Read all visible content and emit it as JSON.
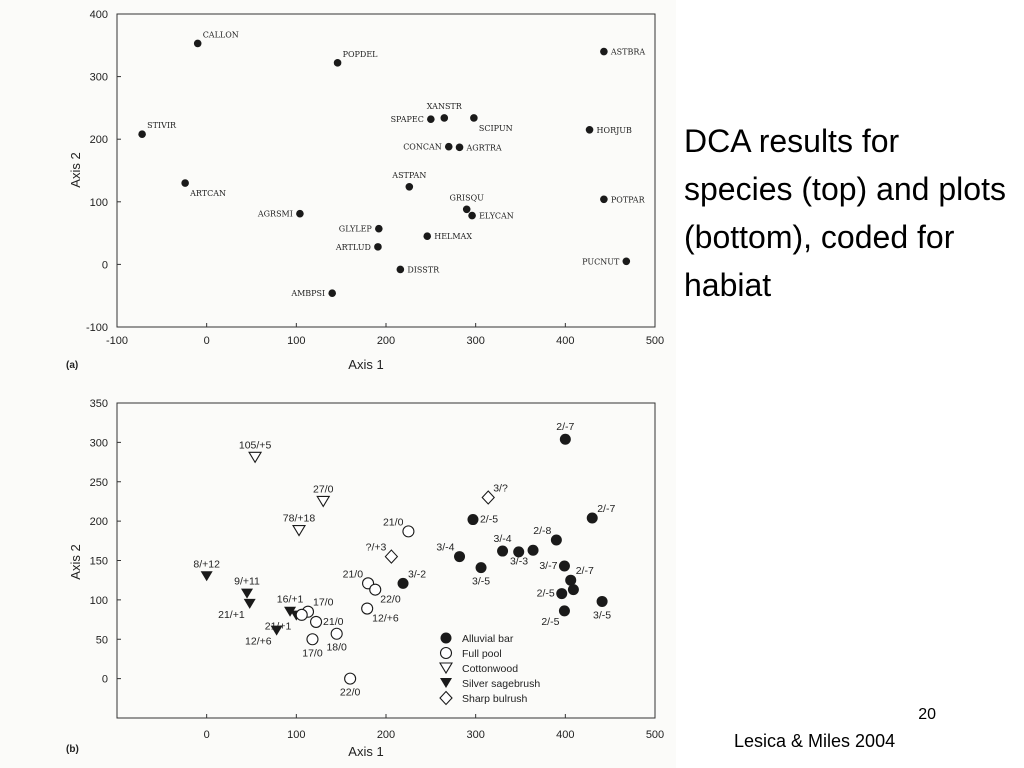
{
  "slide": {
    "caption": "DCA results for species (top) and plots (bottom), coded for habiat",
    "page_number": "20",
    "citation": "Lesica & Miles 2004"
  },
  "chart_data": [
    {
      "type": "scatter",
      "panel": "(a)",
      "xlabel": "Axis 1",
      "ylabel": "Axis 2",
      "xlim": [
        -100,
        500
      ],
      "ylim": [
        -100,
        400
      ],
      "xticks": [
        -100,
        0,
        100,
        200,
        300,
        400,
        500
      ],
      "yticks": [
        -100,
        0,
        100,
        200,
        300,
        400
      ],
      "grid": false,
      "points": [
        {
          "label": "CALLON",
          "x": -10,
          "y": 353,
          "lpos": "ur"
        },
        {
          "label": "POPDEL",
          "x": 146,
          "y": 322,
          "lpos": "ur"
        },
        {
          "label": "ASTBRA",
          "x": 443,
          "y": 340,
          "lpos": "r"
        },
        {
          "label": "STIVIR",
          "x": -72,
          "y": 208,
          "lpos": "ur"
        },
        {
          "label": "XANSTR",
          "x": 265,
          "y": 234,
          "lpos": "ua"
        },
        {
          "label": "SPAPEC",
          "x": 250,
          "y": 232,
          "lpos": "l"
        },
        {
          "label": "SCIPUN",
          "x": 298,
          "y": 234,
          "lpos": "dr"
        },
        {
          "label": "HORJUB",
          "x": 427,
          "y": 215,
          "lpos": "r"
        },
        {
          "label": "CONCAN",
          "x": 270,
          "y": 188,
          "lpos": "l"
        },
        {
          "label": "AGRTRA",
          "x": 282,
          "y": 187,
          "lpos": "r"
        },
        {
          "label": "ASTPAN",
          "x": 226,
          "y": 124,
          "lpos": "ua"
        },
        {
          "label": "ARTCAN",
          "x": -24,
          "y": 130,
          "lpos": "dr"
        },
        {
          "label": "GRISQU",
          "x": 290,
          "y": 88,
          "lpos": "ua"
        },
        {
          "label": "ELYCAN",
          "x": 296,
          "y": 78,
          "lpos": "r"
        },
        {
          "label": "POTPAR",
          "x": 443,
          "y": 104,
          "lpos": "r"
        },
        {
          "label": "AGRSMI",
          "x": 104,
          "y": 81,
          "lpos": "l"
        },
        {
          "label": "GLYLEP",
          "x": 192,
          "y": 57,
          "lpos": "l"
        },
        {
          "label": "HELMAX",
          "x": 246,
          "y": 45,
          "lpos": "r"
        },
        {
          "label": "ARTLUD",
          "x": 191,
          "y": 28,
          "lpos": "l"
        },
        {
          "label": "DISSTR",
          "x": 216,
          "y": -8,
          "lpos": "r"
        },
        {
          "label": "PUCNUT",
          "x": 468,
          "y": 5,
          "lpos": "l"
        },
        {
          "label": "AMBPSI",
          "x": 140,
          "y": -46,
          "lpos": "l"
        }
      ]
    },
    {
      "type": "scatter",
      "panel": "(b)",
      "xlabel": "Axis 1",
      "ylabel": "Axis 2",
      "xlim": [
        -100,
        500
      ],
      "ylim": [
        -50,
        350
      ],
      "xticks": [
        0,
        100,
        200,
        300,
        400,
        500
      ],
      "yticks": [
        0,
        50,
        100,
        150,
        200,
        250,
        300,
        350
      ],
      "grid": false,
      "legend_position": "bottom-right",
      "legend": [
        {
          "name": "Alluvial bar",
          "marker": "filled-circle"
        },
        {
          "name": "Full pool",
          "marker": "open-circle"
        },
        {
          "name": "Cottonwood",
          "marker": "open-triangle"
        },
        {
          "name": "Silver sagebrush",
          "marker": "filled-triangle"
        },
        {
          "name": "Sharp bulrush",
          "marker": "open-diamond"
        }
      ],
      "points": [
        {
          "label": "105/+5",
          "x": 54,
          "y": 281,
          "group": "Cottonwood",
          "lpos": "ua"
        },
        {
          "label": "27/0",
          "x": 130,
          "y": 225,
          "group": "Cottonwood",
          "lpos": "ua"
        },
        {
          "label": "78/+18",
          "x": 103,
          "y": 188,
          "group": "Cottonwood",
          "lpos": "ua"
        },
        {
          "label": "8/+12",
          "x": 0,
          "y": 130,
          "group": "Silver sagebrush",
          "lpos": "ua"
        },
        {
          "label": "9/+11",
          "x": 45,
          "y": 108,
          "group": "Silver sagebrush",
          "lpos": "ua"
        },
        {
          "label": "21/+1",
          "x": 48,
          "y": 95,
          "group": "Silver sagebrush",
          "lpos": "dl"
        },
        {
          "label": "16/+1",
          "x": 93,
          "y": 85,
          "group": "Silver sagebrush",
          "lpos": "ua"
        },
        {
          "label": "21/+1",
          "x": 100,
          "y": 80,
          "group": "Silver sagebrush",
          "lpos": "dl"
        },
        {
          "label": "12/+6",
          "x": 78,
          "y": 61,
          "group": "Silver sagebrush",
          "lpos": "dl"
        },
        {
          "label": "17/0",
          "x": 113,
          "y": 85,
          "group": "Full pool",
          "lpos": "ur"
        },
        {
          "label": "",
          "x": 106,
          "y": 81,
          "group": "Full pool",
          "lpos": "r"
        },
        {
          "label": "21/0",
          "x": 122,
          "y": 72,
          "group": "Full pool",
          "lpos": "r"
        },
        {
          "label": "17/0",
          "x": 118,
          "y": 50,
          "group": "Full pool",
          "lpos": "d"
        },
        {
          "label": "18/0",
          "x": 145,
          "y": 57,
          "group": "Full pool",
          "lpos": "d"
        },
        {
          "label": "22/0",
          "x": 160,
          "y": 0,
          "group": "Full pool",
          "lpos": "d"
        },
        {
          "label": "21/0",
          "x": 225,
          "y": 187,
          "group": "Full pool",
          "lpos": "ul"
        },
        {
          "label": "21/0",
          "x": 180,
          "y": 121,
          "group": "Full pool",
          "lpos": "ul"
        },
        {
          "label": "22/0",
          "x": 188,
          "y": 113,
          "group": "Full pool",
          "lpos": "dr"
        },
        {
          "label": "12/+6",
          "x": 179,
          "y": 89,
          "group": "Full pool",
          "lpos": "dr"
        },
        {
          "label": "?/+3",
          "x": 206,
          "y": 155,
          "group": "Sharp bulrush",
          "lpos": "ul"
        },
        {
          "label": "3/?",
          "x": 314,
          "y": 230,
          "group": "Sharp bulrush",
          "lpos": "ur"
        },
        {
          "label": "3/-2",
          "x": 219,
          "y": 121,
          "group": "Alluvial bar",
          "lpos": "ur"
        },
        {
          "label": "3/-4",
          "x": 282,
          "y": 155,
          "group": "Alluvial bar",
          "lpos": "ul"
        },
        {
          "label": "2/-5",
          "x": 297,
          "y": 202,
          "group": "Alluvial bar",
          "lpos": "r"
        },
        {
          "label": "3/-4",
          "x": 330,
          "y": 162,
          "group": "Alluvial bar",
          "lpos": "ua"
        },
        {
          "label": "3/-5",
          "x": 306,
          "y": 141,
          "group": "Alluvial bar",
          "lpos": "d"
        },
        {
          "label": "",
          "x": 348,
          "y": 161,
          "group": "Alluvial bar",
          "lpos": "r"
        },
        {
          "label": "3/-3",
          "x": 364,
          "y": 163,
          "group": "Alluvial bar",
          "lpos": "dl"
        },
        {
          "label": "2/-8",
          "x": 390,
          "y": 176,
          "group": "Alluvial bar",
          "lpos": "ul"
        },
        {
          "label": "3/-7",
          "x": 399,
          "y": 143,
          "group": "Alluvial bar",
          "lpos": "l"
        },
        {
          "label": "2/-7",
          "x": 400,
          "y": 304,
          "group": "Alluvial bar",
          "lpos": "ua"
        },
        {
          "label": "2/-7",
          "x": 430,
          "y": 204,
          "group": "Alluvial bar",
          "lpos": "ur"
        },
        {
          "label": "2/-7",
          "x": 406,
          "y": 125,
          "group": "Alluvial bar",
          "lpos": "ur"
        },
        {
          "label": "",
          "x": 409,
          "y": 113,
          "group": "Alluvial bar",
          "lpos": "r"
        },
        {
          "label": "2/-5",
          "x": 399,
          "y": 86,
          "group": "Alluvial bar",
          "lpos": "dl"
        },
        {
          "label": "3/-5",
          "x": 441,
          "y": 98,
          "group": "Alluvial bar",
          "lpos": "d"
        },
        {
          "label": "2/-5",
          "x": 396,
          "y": 108,
          "group": "Alluvial bar",
          "lpos": "l"
        }
      ]
    }
  ]
}
